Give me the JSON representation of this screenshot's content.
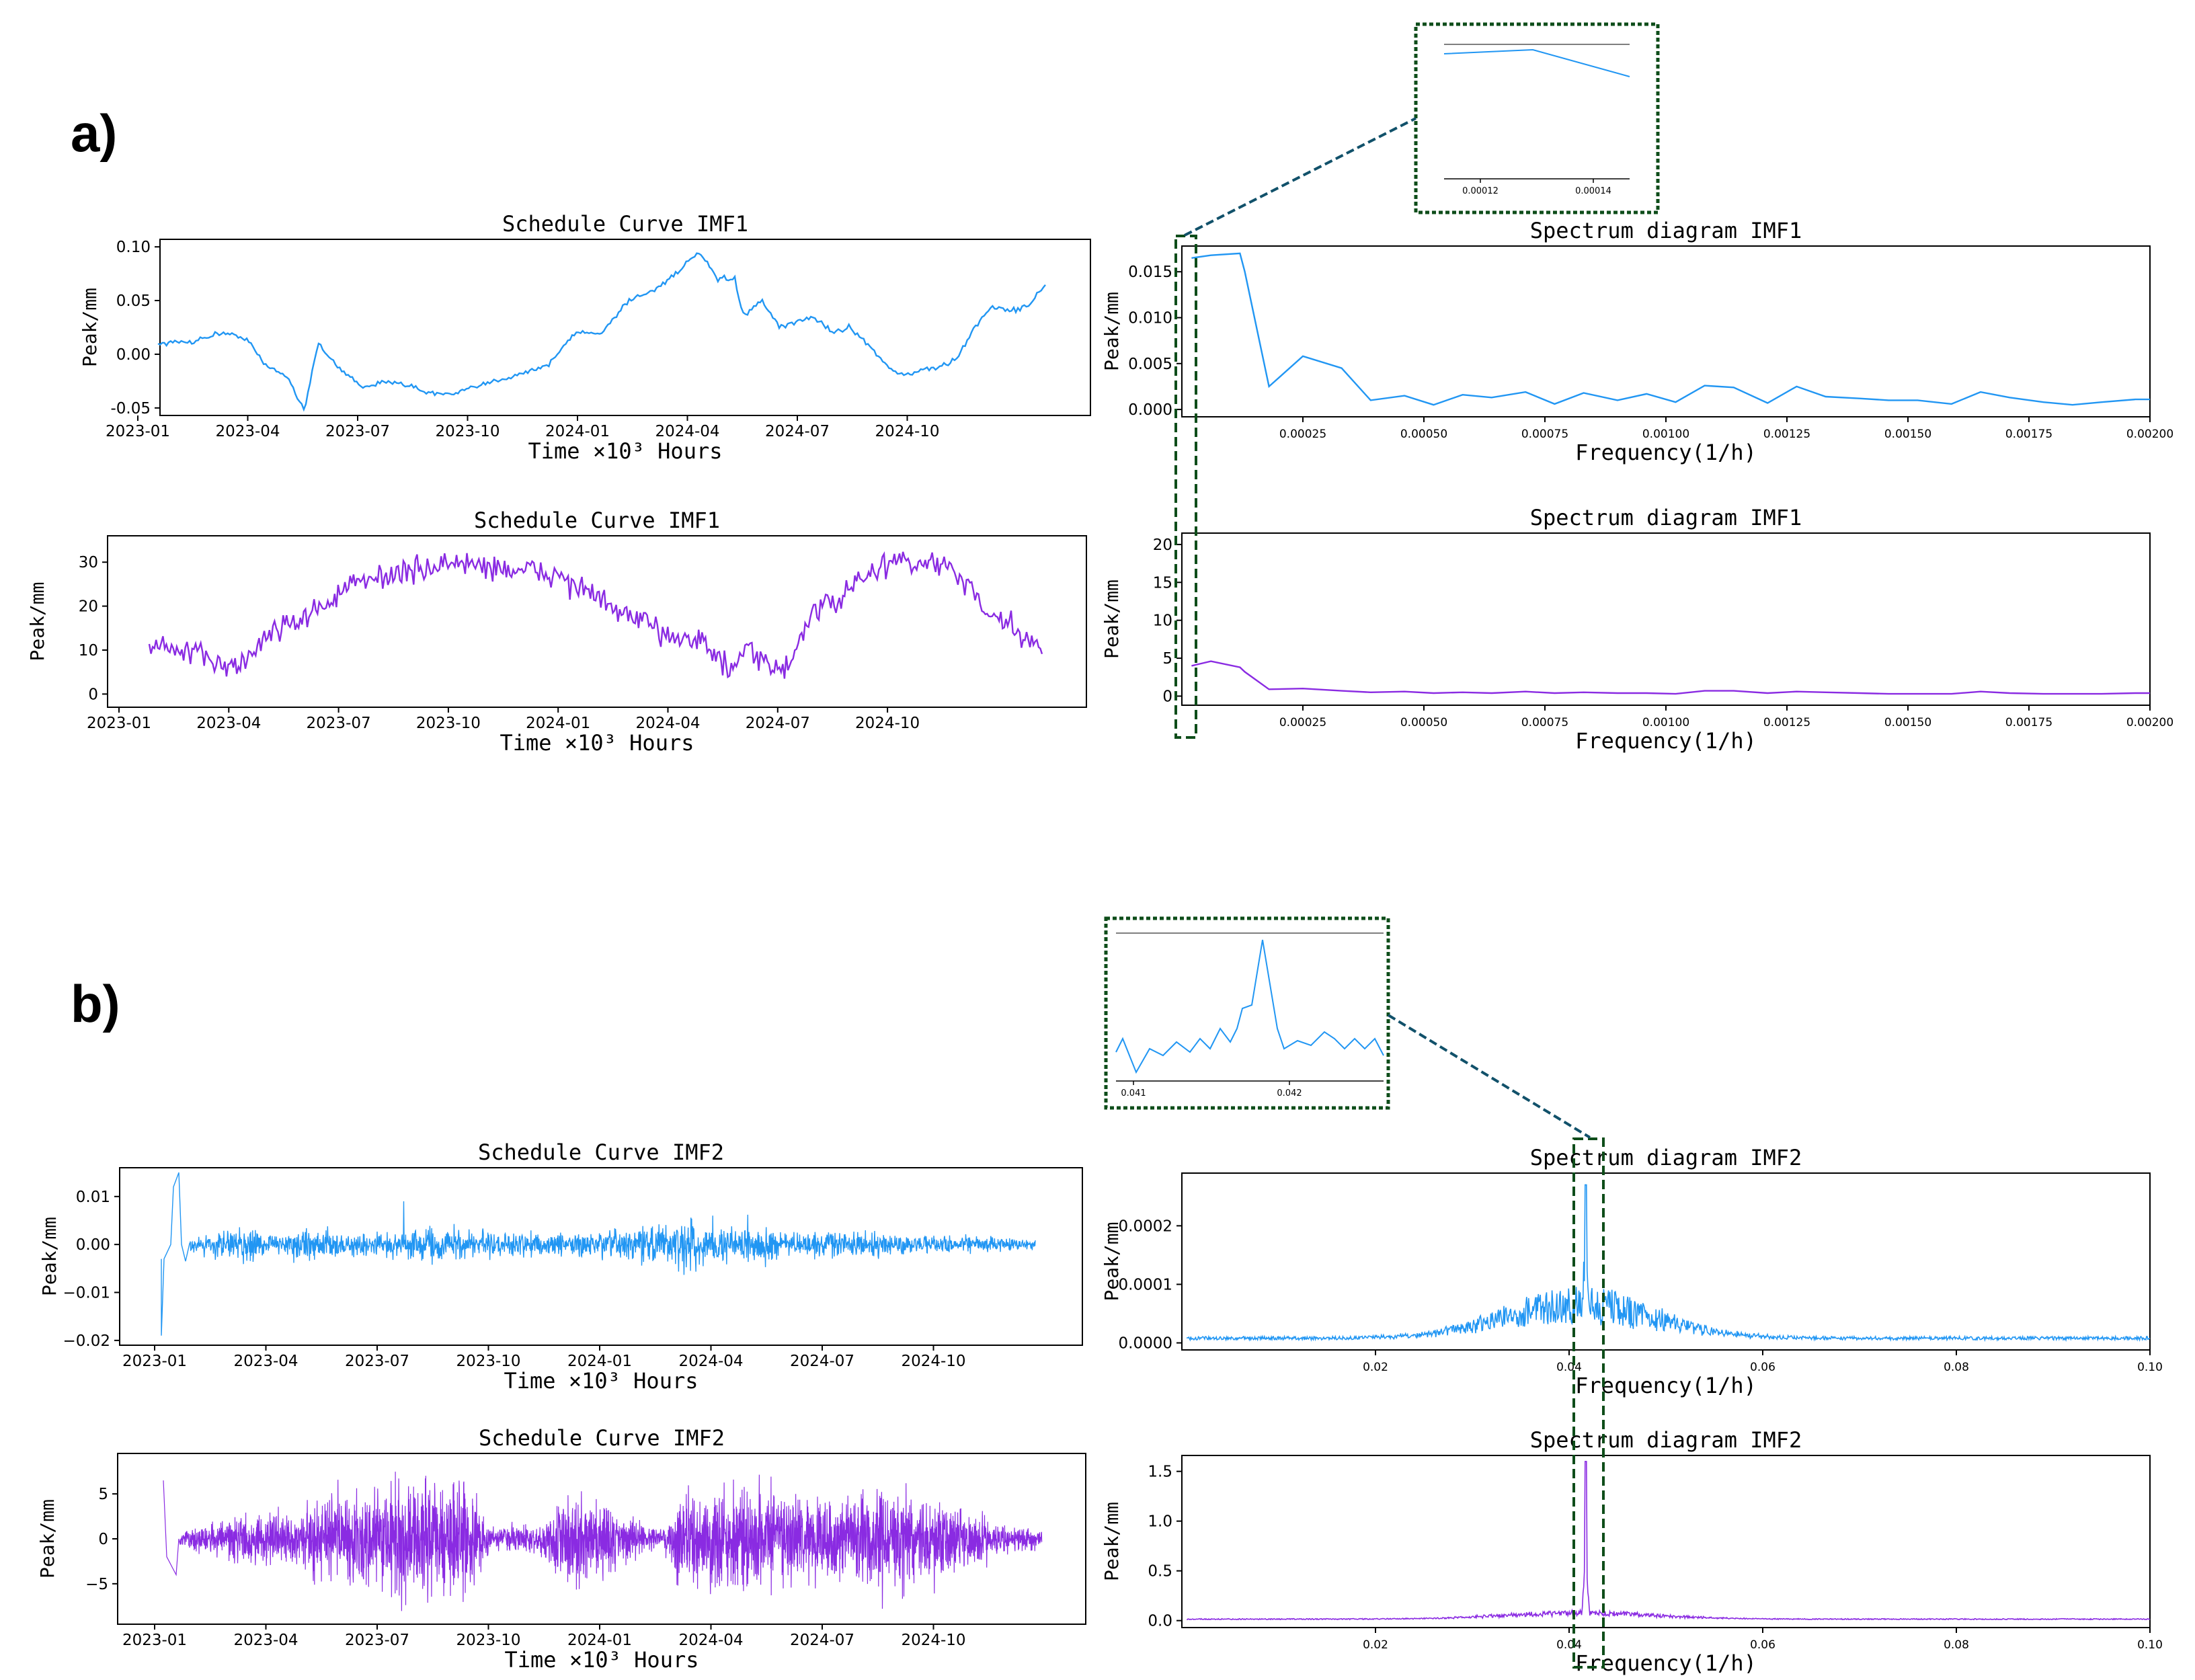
{
  "colors": {
    "blue": "#2196F3",
    "purple": "#8A2BE2",
    "dash": "#0E4D1A",
    "connector": "#11516A",
    "axis": "#000000"
  },
  "panels": [
    {
      "label": "a)",
      "charts": [
        {
          "type": "line",
          "title": "Schedule Curve  IMF1",
          "xlabel": "Time ×10³ Hours",
          "ylabel": "Peak/mm",
          "color": "blue",
          "x_tick_labels": [
            "2023-01",
            "2023-04",
            "2023-07",
            "2023-10",
            "2024-01",
            "2024-04",
            "2024-07",
            "2024-10"
          ],
          "y_ticks": [
            0.1,
            0.05,
            0.0,
            -0.05
          ],
          "y_tick_labels": [
            "0.10",
            "0.05",
            "0.00",
            "-0.05"
          ],
          "ylim": [
            -0.057,
            0.107
          ]
        },
        {
          "type": "line",
          "title": "Schedule Curve  IMF1",
          "xlabel": "Time ×10³ Hours",
          "ylabel": "Peak/mm",
          "color": "purple",
          "x_tick_labels": [
            "2023-01",
            "2023-04",
            "2023-07",
            "2023-10",
            "2024-01",
            "2024-04",
            "2024-07",
            "2024-10"
          ],
          "y_ticks": [
            30,
            20,
            10,
            0
          ],
          "y_tick_labels": [
            "30",
            "20",
            "10",
            "0"
          ],
          "ylim": [
            -3,
            36
          ]
        },
        {
          "type": "line",
          "title": "Spectrum diagram  IMF1",
          "xlabel": "Frequency(1/h)",
          "ylabel": "Peak/mm",
          "color": "blue",
          "x_ticks": [
            0.00025,
            0.0005,
            0.00075,
            0.001,
            0.00125,
            0.0015,
            0.00175,
            0.002
          ],
          "x_tick_labels": [
            "0.00025",
            "0.00050",
            "0.00075",
            "0.00100",
            "0.00125",
            "0.00150",
            "0.00175",
            "0.00200"
          ],
          "xlim": [
            0.0,
            0.002
          ],
          "y_ticks": [
            0.015,
            0.01,
            0.005,
            0.0
          ],
          "y_tick_labels": [
            "0.015",
            "0.010",
            "0.005",
            "0.000"
          ],
          "ylim": [
            -0.0008,
            0.0178
          ],
          "x": [
            2e-05,
            6e-05,
            0.00012,
            0.00013,
            0.00018,
            0.00025,
            0.00033,
            0.00039,
            0.00046,
            0.00052,
            0.00058,
            0.00064,
            0.00071,
            0.00077,
            0.00083,
            0.0009,
            0.00096,
            0.00102,
            0.00108,
            0.00114,
            0.00121,
            0.00127,
            0.00133,
            0.0014,
            0.00146,
            0.00152,
            0.00159,
            0.00165,
            0.00171,
            0.00178,
            0.00184,
            0.0019,
            0.00197,
            0.002
          ],
          "y": [
            0.0165,
            0.0168,
            0.017,
            0.015,
            0.0025,
            0.0058,
            0.0045,
            0.001,
            0.0015,
            0.0005,
            0.0016,
            0.0013,
            0.0019,
            0.0006,
            0.0018,
            0.001,
            0.0017,
            0.0008,
            0.0026,
            0.0024,
            0.0007,
            0.0025,
            0.0014,
            0.0012,
            0.001,
            0.001,
            0.0006,
            0.0019,
            0.0013,
            0.0008,
            0.0005,
            0.0008,
            0.0011,
            0.0011
          ]
        },
        {
          "type": "line",
          "title": "Spectrum diagram  IMF1",
          "xlabel": "Frequency(1/h)",
          "ylabel": "Peak/mm",
          "color": "purple",
          "x_ticks": [
            0.00025,
            0.0005,
            0.00075,
            0.001,
            0.00125,
            0.0015,
            0.00175,
            0.002
          ],
          "x_tick_labels": [
            "0.00025",
            "0.00050",
            "0.00075",
            "0.00100",
            "0.00125",
            "0.00150",
            "0.00175",
            "0.00200"
          ],
          "xlim": [
            0.0,
            0.002
          ],
          "y_ticks": [
            20,
            15,
            10,
            5,
            0
          ],
          "y_tick_labels": [
            "20",
            "15",
            "10",
            "5",
            "0"
          ],
          "ylim": [
            -1.2,
            21.5
          ],
          "x": [
            2e-05,
            6e-05,
            0.00012,
            0.00013,
            0.00018,
            0.00025,
            0.00033,
            0.00039,
            0.00046,
            0.00052,
            0.00058,
            0.00064,
            0.00071,
            0.00077,
            0.00083,
            0.0009,
            0.00096,
            0.00102,
            0.00108,
            0.00114,
            0.00121,
            0.00127,
            0.00133,
            0.0014,
            0.00146,
            0.00152,
            0.00159,
            0.00165,
            0.00171,
            0.00178,
            0.00184,
            0.0019,
            0.00197,
            0.002
          ],
          "y": [
            4.0,
            4.6,
            3.8,
            3.2,
            0.9,
            1.0,
            0.7,
            0.5,
            0.6,
            0.4,
            0.5,
            0.4,
            0.6,
            0.4,
            0.5,
            0.4,
            0.4,
            0.3,
            0.7,
            0.7,
            0.4,
            0.6,
            0.5,
            0.4,
            0.3,
            0.3,
            0.3,
            0.6,
            0.4,
            0.3,
            0.3,
            0.3,
            0.4,
            0.4
          ]
        }
      ],
      "inset": {
        "x_tick_labels": [
          "0.00012",
          "0.00014"
        ]
      }
    },
    {
      "label": "b)",
      "charts": [
        {
          "type": "line",
          "title": "Schedule Curve  IMF2",
          "xlabel": "Time ×10³ Hours",
          "ylabel": "Peak/mm",
          "color": "blue",
          "x_tick_labels": [
            "2023-01",
            "2023-04",
            "2023-07",
            "2023-10",
            "2024-01",
            "2024-04",
            "2024-07",
            "2024-10"
          ],
          "y_ticks": [
            0.01,
            0.0,
            -0.01,
            -0.02
          ],
          "y_tick_labels": [
            "0.01",
            "0.00",
            "−0.01",
            "−0.02"
          ],
          "ylim": [
            -0.021,
            0.016
          ]
        },
        {
          "type": "line",
          "title": "Schedule Curve  IMF2",
          "xlabel": "Time ×10³ Hours",
          "ylabel": "Peak/mm",
          "color": "purple",
          "x_tick_labels": [
            "2023-01",
            "2023-04",
            "2023-07",
            "2023-10",
            "2024-01",
            "2024-04",
            "2024-07",
            "2024-10"
          ],
          "y_ticks": [
            5,
            0,
            -5
          ],
          "y_tick_labels": [
            "5",
            "0",
            "−5"
          ],
          "ylim": [
            -9.5,
            9.5
          ]
        },
        {
          "type": "line",
          "title": "Spectrum diagram  IMF2",
          "xlabel": "Frequency(1/h)",
          "ylabel": "Peak/mm",
          "color": "blue",
          "x_ticks": [
            0.02,
            0.04,
            0.06,
            0.08,
            0.1
          ],
          "x_tick_labels": [
            "0.02",
            "0.04",
            "0.06",
            "0.08",
            "0.10"
          ],
          "xlim": [
            0.0,
            0.1
          ],
          "y_ticks": [
            0.0002,
            0.0001,
            0.0
          ],
          "y_tick_labels": [
            "0.0002",
            "0.0001",
            "0.0000"
          ],
          "ylim": [
            -1.2e-05,
            0.00029
          ],
          "peak_x": 0.0417,
          "peak_y": 0.00027
        },
        {
          "type": "line",
          "title": "Spectrum diagram  IMF2",
          "xlabel": "Frequency(1/h)",
          "ylabel": "Peak/mm",
          "color": "purple",
          "x_ticks": [
            0.02,
            0.04,
            0.06,
            0.08,
            0.1
          ],
          "x_tick_labels": [
            "0.02",
            "0.04",
            "0.06",
            "0.08",
            "0.10"
          ],
          "xlim": [
            0.0,
            0.1
          ],
          "y_ticks": [
            1.5,
            1.0,
            0.5,
            0.0
          ],
          "y_tick_labels": [
            "1.5",
            "1.0",
            "0.5",
            "0.0"
          ],
          "ylim": [
            -0.07,
            1.66
          ],
          "peak_x": 0.0417,
          "peak_y": 1.6
        }
      ],
      "inset": {
        "x_tick_labels": [
          "0.041",
          "0.042"
        ]
      }
    }
  ]
}
